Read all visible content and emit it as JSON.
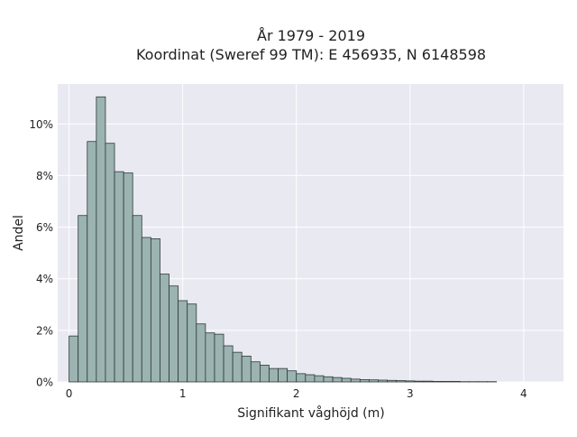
{
  "chart_data": {
    "type": "bar",
    "title_line1": "År 1979 - 2019",
    "title_line2": "Koordinat (Sweref 99 TM): E 456935, N 6148598",
    "xlabel": "Signifikant våghöjd (m)",
    "ylabel": "Andel",
    "xlim": [
      -0.1,
      4.35
    ],
    "ylim": [
      0,
      0.1155
    ],
    "xticks": [
      0,
      1,
      2,
      3,
      4
    ],
    "xtick_labels": [
      "0",
      "1",
      "2",
      "3",
      "4"
    ],
    "yticks": [
      0,
      0.02,
      0.04,
      0.06,
      0.08,
      0.1
    ],
    "ytick_labels": [
      "0%",
      "2%",
      "4%",
      "6%",
      "8%",
      "10%"
    ],
    "grid": true,
    "bin_width": 0.08,
    "bin_edges_start": 0.0,
    "values": [
      0.0178,
      0.0645,
      0.0932,
      0.1105,
      0.0925,
      0.0815,
      0.081,
      0.0645,
      0.056,
      0.0555,
      0.0418,
      0.0372,
      0.0315,
      0.0302,
      0.0225,
      0.019,
      0.0185,
      0.014,
      0.0115,
      0.01,
      0.0078,
      0.0065,
      0.0052,
      0.0052,
      0.0043,
      0.0032,
      0.0028,
      0.0024,
      0.002,
      0.0017,
      0.0014,
      0.0011,
      0.0009,
      0.0008,
      0.0007,
      0.0006,
      0.0005,
      0.0004,
      0.0003,
      0.0003,
      0.0002,
      0.0002,
      0.0002,
      0.0001,
      0.0001,
      0.0001,
      0.0001
    ],
    "colors": {
      "plot_background": "#e9e9f1",
      "grid": "#ffffff",
      "bar_fill": "#9bb3b1",
      "bar_edge": "#2f3a38"
    }
  }
}
